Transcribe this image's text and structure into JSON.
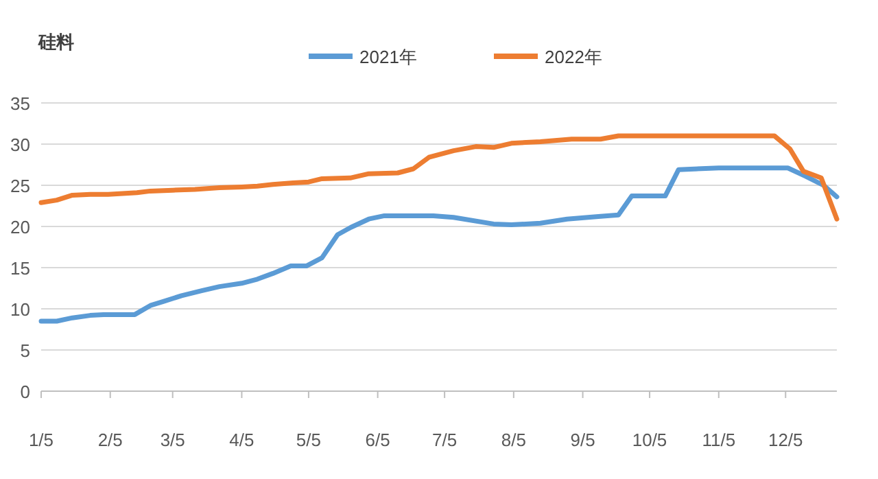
{
  "chart_data": {
    "type": "line",
    "title": "硅料",
    "legend": "top",
    "grid": "y",
    "marker": "none",
    "line_style": "solid",
    "xlim": [
      "--01-05",
      "--12-28"
    ],
    "xticks": [
      {
        "value": "--01-05",
        "label": "1/5"
      },
      {
        "value": "--02-05",
        "label": "2/5"
      },
      {
        "value": "--03-05",
        "label": "3/5"
      },
      {
        "value": "--04-05",
        "label": "4/5"
      },
      {
        "value": "--05-05",
        "label": "5/5"
      },
      {
        "value": "--06-05",
        "label": "6/5"
      },
      {
        "value": "--07-05",
        "label": "7/5"
      },
      {
        "value": "--08-05",
        "label": "8/5"
      },
      {
        "value": "--09-05",
        "label": "9/5"
      },
      {
        "value": "--10-05",
        "label": "10/5"
      },
      {
        "value": "--11-05",
        "label": "11/5"
      },
      {
        "value": "--12-05",
        "label": "12/5"
      }
    ],
    "ylim": [
      0,
      35
    ],
    "yticks": [
      0,
      5,
      10,
      15,
      20,
      25,
      30,
      35
    ],
    "series": [
      {
        "name": "2021年",
        "color": "#5b9bd5",
        "x": [
          "--01-05",
          "--01-12",
          "--01-19",
          "--01-27",
          "--02-02",
          "--02-16",
          "--02-23",
          "--03-01",
          "--03-09",
          "--03-18",
          "--03-26",
          "--04-05",
          "--04-12",
          "--04-19",
          "--04-27",
          "--05-04",
          "--05-11",
          "--05-18",
          "--05-24",
          "--06-01",
          "--06-08",
          "--06-20",
          "--06-30",
          "--07-09",
          "--07-27",
          "--08-04",
          "--08-17",
          "--08-29",
          "--09-12",
          "--09-21",
          "--09-27",
          "--10-12",
          "--10-18",
          "--11-05",
          "--12-06",
          "--12-14",
          "--12-22",
          "--12-28"
        ],
        "values": [
          8.5,
          8.5,
          8.9,
          9.2,
          9.3,
          9.3,
          10.4,
          10.9,
          11.6,
          12.2,
          12.7,
          13.1,
          13.6,
          14.3,
          15.2,
          15.2,
          16.2,
          19.0,
          19.9,
          20.9,
          21.3,
          21.3,
          21.3,
          21.1,
          20.3,
          20.2,
          20.4,
          20.9,
          21.2,
          21.4,
          23.7,
          23.7,
          26.9,
          27.1,
          27.1,
          26.1,
          25.0,
          23.6
        ]
      },
      {
        "name": "2022年",
        "color": "#ed7d31",
        "x": [
          "--01-05",
          "--01-12",
          "--01-19",
          "--01-27",
          "--02-04",
          "--02-17",
          "--02-23",
          "--03-05",
          "--03-15",
          "--03-26",
          "--04-05",
          "--04-12",
          "--04-19",
          "--04-28",
          "--05-05",
          "--05-11",
          "--05-24",
          "--06-01",
          "--06-14",
          "--06-21",
          "--06-28",
          "--07-09",
          "--07-19",
          "--07-27",
          "--08-04",
          "--08-17",
          "--08-31",
          "--09-13",
          "--09-21",
          "--11-30",
          "--12-07",
          "--12-13",
          "--12-21",
          "--12-28"
        ],
        "values": [
          22.9,
          23.2,
          23.8,
          23.9,
          23.9,
          24.1,
          24.3,
          24.4,
          24.5,
          24.7,
          24.8,
          24.9,
          25.1,
          25.3,
          25.4,
          25.8,
          25.9,
          26.4,
          26.5,
          27.0,
          28.4,
          29.2,
          29.7,
          29.6,
          30.1,
          30.3,
          30.6,
          30.6,
          31.0,
          31.0,
          29.4,
          26.7,
          25.9,
          20.9
        ]
      }
    ]
  }
}
